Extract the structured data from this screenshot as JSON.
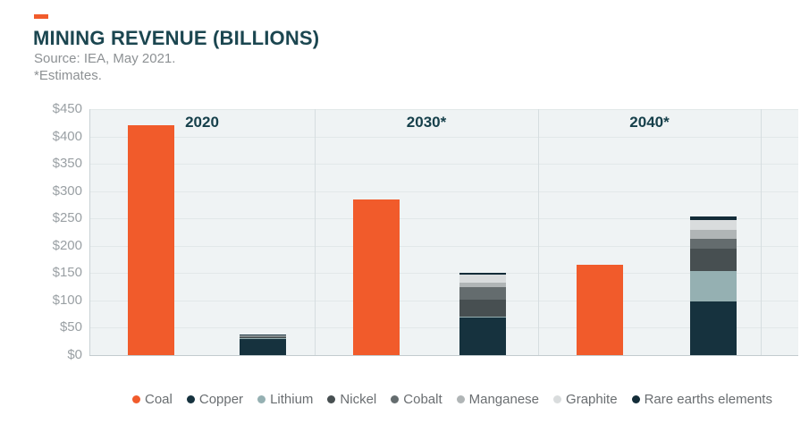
{
  "header": {
    "title": "MINING REVENUE (BILLIONS)",
    "source": "Source: IEA, May 2021.",
    "note": "*Estimates."
  },
  "chart_data": {
    "type": "bar",
    "subtype": "grouped-stacked",
    "title": "MINING REVENUE (BILLIONS)",
    "unit": "US$ billions",
    "categories": [
      "2020",
      "2030*",
      "2040*"
    ],
    "ylim": [
      0,
      450
    ],
    "ytick_step": 50,
    "ytick_labels": [
      "$450",
      "$400",
      "$350",
      "$300",
      "$250",
      "$200",
      "$150",
      "$100",
      "$50",
      "$0"
    ],
    "grid": true,
    "legend_position": "bottom",
    "stack_note": "Coal is a standalone bar per year; the remaining series stack into the second (minerals) bar per year; values estimated from gridlines",
    "series": [
      {
        "name": "Coal",
        "key": "coal",
        "stacked": false,
        "values": [
          420,
          285,
          165
        ]
      },
      {
        "name": "Copper",
        "key": "copper",
        "stacked": true,
        "values": [
          30,
          69,
          98
        ]
      },
      {
        "name": "Lithium",
        "key": "lithium",
        "stacked": true,
        "values": [
          1,
          2,
          56
        ]
      },
      {
        "name": "Nickel",
        "key": "nickel",
        "stacked": true,
        "values": [
          3,
          30,
          40
        ]
      },
      {
        "name": "Cobalt",
        "key": "cobalt",
        "stacked": true,
        "values": [
          1,
          23,
          19
        ]
      },
      {
        "name": "Manganese",
        "key": "manganese",
        "stacked": true,
        "values": [
          1,
          9,
          16
        ]
      },
      {
        "name": "Graphite",
        "key": "graphite",
        "stacked": true,
        "values": [
          1,
          15,
          18
        ]
      },
      {
        "name": "Rare earths elements",
        "key": "rare_earths",
        "stacked": true,
        "values": [
          1,
          3,
          6
        ]
      }
    ],
    "minerals_stack_totals": [
      38,
      151,
      253
    ],
    "colors": {
      "coal": "#f15b2b",
      "copper": "#16323e",
      "lithium": "#95b0b2",
      "nickel": "#474f51",
      "cobalt": "#646c6e",
      "manganese": "#b0b5b6",
      "graphite": "#d9dcdd",
      "rare_earths": "#132c38"
    }
  },
  "colors": {
    "accent": "#f15b2b",
    "title_text": "#1b4650",
    "subtitle_text": "#8d9194",
    "axis_label_text": "#9aa0a4",
    "year_label_text": "#16404b",
    "legend_text": "#6a6e71",
    "plot_bg": "#eff3f4",
    "gridline": "#e2e8e9",
    "baseline": "#c3cccf",
    "panel_divider": "#d6dde0",
    "plot_left_edge": "#c9d2d5"
  }
}
